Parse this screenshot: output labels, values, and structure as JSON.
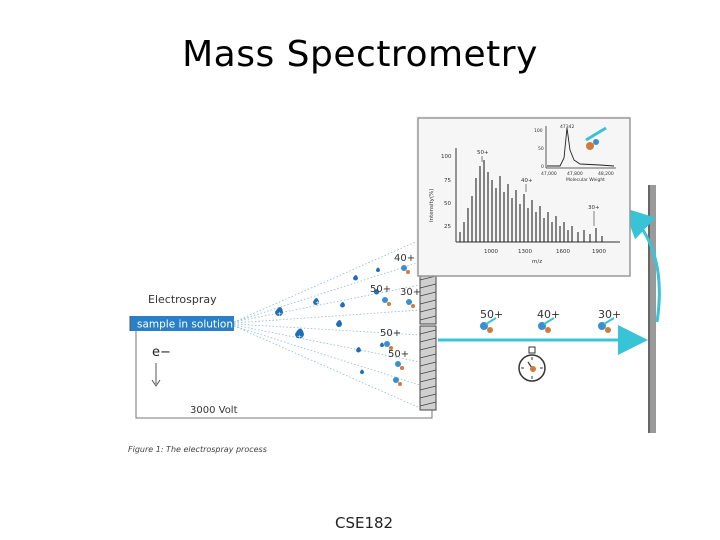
{
  "slide": {
    "title": "Mass Spectrometry",
    "footer": "CSE182"
  },
  "electrospray": {
    "header": "Electrospray",
    "needle_label": "sample in solution",
    "electron_label": "e−",
    "voltage_label": "3000 Volt",
    "figure_caption": "Figure 1: The electrospray process",
    "plume_charges": [
      "40+",
      "50+",
      "30+",
      "50+",
      "50+"
    ]
  },
  "time_of_flight": {
    "ion_labels": [
      "50+",
      "40+",
      "30+"
    ]
  },
  "spectrum_inset": {
    "ylabel": "Intensity(%)",
    "xlabel": "m/z",
    "y_ticks": [
      "100",
      "75",
      "50",
      "25"
    ],
    "x_ticks": [
      "1000",
      "1300",
      "1600",
      "1900"
    ],
    "peak_labels": [
      "50+",
      "40+",
      "30+"
    ],
    "deconv": {
      "y_ticks": [
        "100",
        "50",
        "0"
      ],
      "x_ticks": [
        "47,000",
        "47,800",
        "48,200"
      ],
      "xlabel": "Molecular Weight",
      "peak_label": "47342"
    }
  },
  "colors": {
    "accent": "#38c4d6",
    "needle": "#2a7fc9",
    "droplet": "#1e6fb8",
    "ion": "#3b8fd0"
  }
}
